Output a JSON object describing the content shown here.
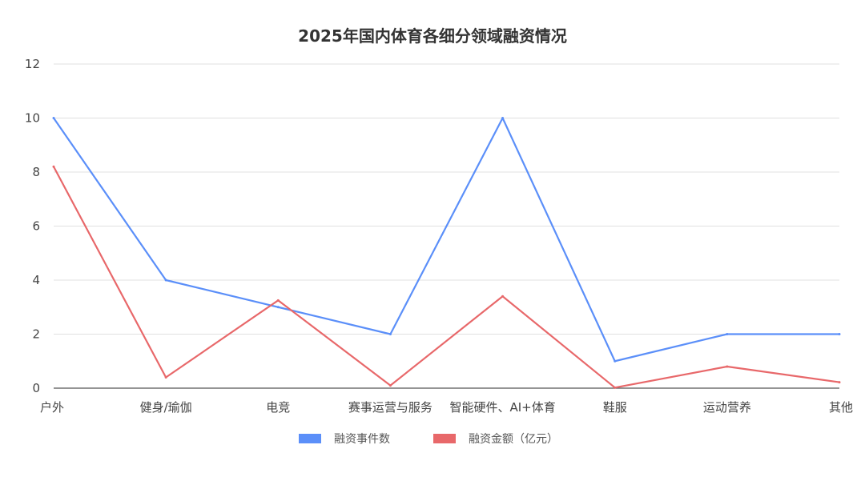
{
  "chart_data": {
    "type": "line",
    "title": "2025年国内体育各细分领域融资情况",
    "categories": [
      "户外",
      "健身/瑜伽",
      "电竞",
      "赛事运营与服务",
      "智能硬件、AI+体育",
      "鞋服",
      "运动营养",
      "其他"
    ],
    "series": [
      {
        "name": "融资事件数",
        "color": "#5b8ff9",
        "values": [
          10,
          4,
          3,
          2,
          10,
          1,
          2,
          2
        ]
      },
      {
        "name": "融资金额（亿元）",
        "color": "#e8686a",
        "values": [
          8.2,
          0.4,
          3.25,
          0.1,
          3.4,
          0.02,
          0.8,
          0.22
        ]
      }
    ],
    "ylim": [
      0,
      12
    ],
    "yticks": [
      0,
      2,
      4,
      6,
      8,
      10,
      12
    ],
    "grid": true,
    "legend_position": "bottom"
  }
}
